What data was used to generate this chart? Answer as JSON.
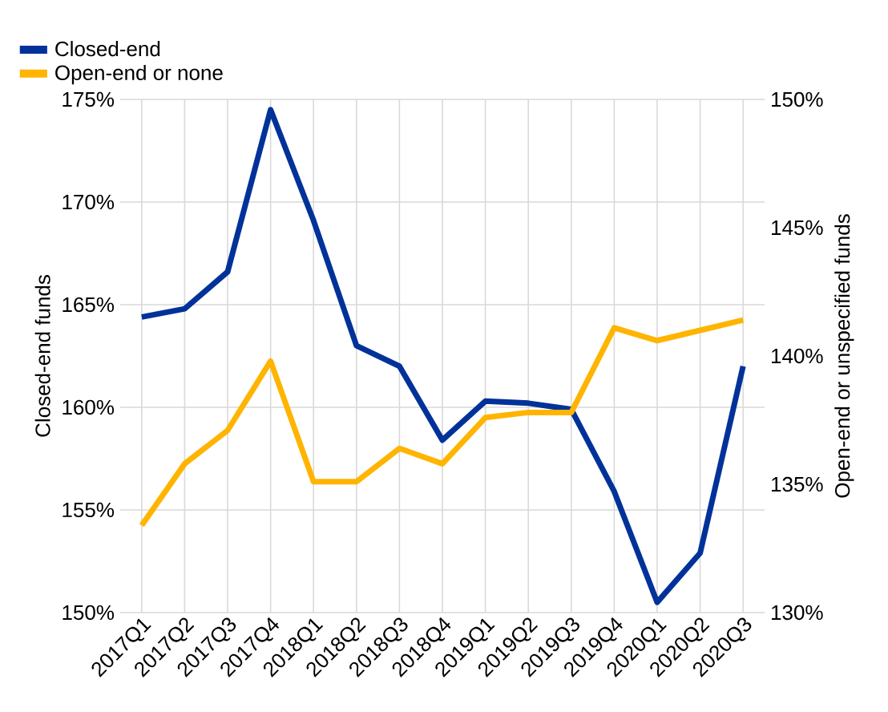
{
  "chart_data": {
    "type": "line",
    "ylabel": "Closed-end funds",
    "y2label": "Open-end or unspecified funds",
    "categories": [
      "2017Q1",
      "2017Q2",
      "2017Q3",
      "2017Q4",
      "2018Q1",
      "2018Q2",
      "2018Q3",
      "2018Q4",
      "2019Q1",
      "2019Q2",
      "2019Q3",
      "2019Q4",
      "2020Q1",
      "2020Q2",
      "2020Q3"
    ],
    "series": [
      {
        "name": "Closed-end",
        "color": "#003299",
        "values": [
          164.4,
          164.8,
          166.6,
          174.5,
          169.1,
          163.0,
          162.0,
          158.4,
          160.3,
          160.2,
          159.9,
          155.9,
          150.5,
          152.9,
          162.0
        ]
      },
      {
        "name": "Open-end or none",
        "color": "#ffb400",
        "axis": "y2",
        "values": [
          133.4,
          135.8,
          137.1,
          139.8,
          135.1,
          135.1,
          136.4,
          135.8,
          137.6,
          137.8,
          137.8,
          141.1,
          140.6,
          141.0,
          141.4
        ]
      }
    ],
    "ylim": [
      150,
      175
    ],
    "yticks": [
      {
        "value": 150,
        "label": "150%"
      },
      {
        "value": 155,
        "label": "155%"
      },
      {
        "value": 160,
        "label": "160%"
      },
      {
        "value": 165,
        "label": "165%"
      },
      {
        "value": 170,
        "label": "170%"
      },
      {
        "value": 175,
        "label": "175%"
      }
    ],
    "y2lim": [
      130,
      150
    ],
    "y2ticks": [
      {
        "value": 130,
        "label": "130%"
      },
      {
        "value": 135,
        "label": "135%"
      },
      {
        "value": 140,
        "label": "140%"
      },
      {
        "value": 145,
        "label": "145%"
      },
      {
        "value": 150,
        "label": "150%"
      }
    ],
    "grid": true,
    "legend": "top left",
    "marker": "none",
    "line_style": "solid"
  }
}
